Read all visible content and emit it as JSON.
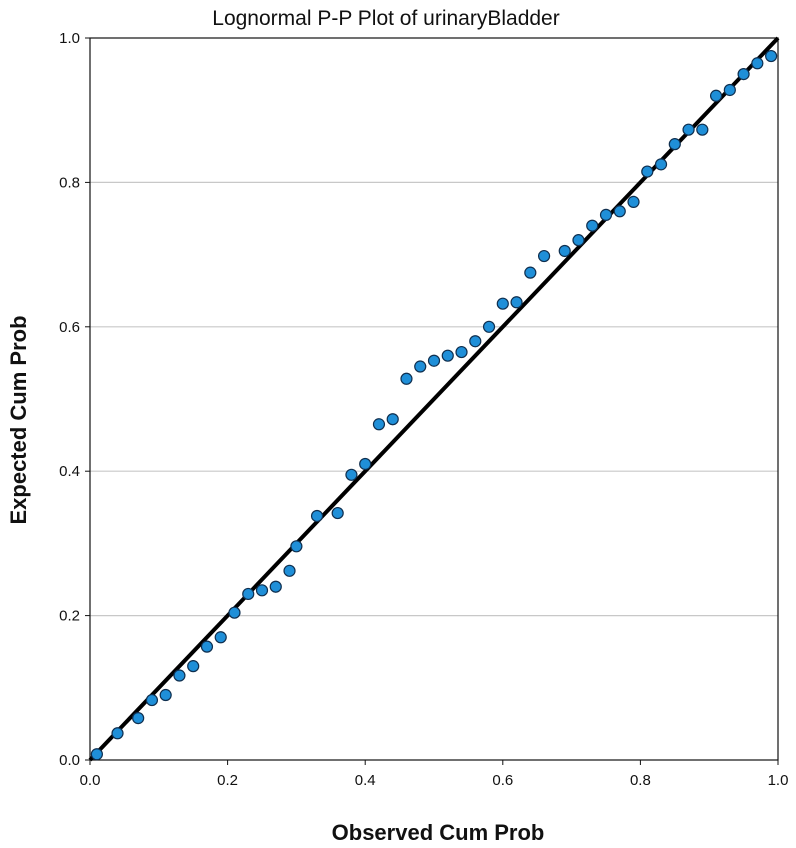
{
  "chart_data": {
    "type": "scatter",
    "title": "Lognormal P-P Plot of urinaryBladder",
    "xlabel": "Observed Cum Prob",
    "ylabel": "Expected Cum Prob",
    "xlim": [
      0.0,
      1.0
    ],
    "ylim": [
      0.0,
      1.0
    ],
    "x_ticks": [
      "0.0",
      "0.2",
      "0.4",
      "0.6",
      "0.8",
      "1.0"
    ],
    "y_ticks": [
      "0.0",
      "0.2",
      "0.4",
      "0.6",
      "0.8",
      "1.0"
    ],
    "grid": "horizontal",
    "reference_line": {
      "from": [
        0.0,
        0.0
      ],
      "to": [
        1.0,
        1.0
      ]
    },
    "point_color": "#1f8fd8",
    "line_color": "#000000",
    "points": [
      [
        0.01,
        0.008
      ],
      [
        0.04,
        0.037
      ],
      [
        0.07,
        0.058
      ],
      [
        0.09,
        0.083
      ],
      [
        0.11,
        0.09
      ],
      [
        0.13,
        0.117
      ],
      [
        0.15,
        0.13
      ],
      [
        0.17,
        0.157
      ],
      [
        0.19,
        0.17
      ],
      [
        0.21,
        0.204
      ],
      [
        0.23,
        0.23
      ],
      [
        0.25,
        0.235
      ],
      [
        0.27,
        0.24
      ],
      [
        0.29,
        0.262
      ],
      [
        0.3,
        0.296
      ],
      [
        0.33,
        0.338
      ],
      [
        0.36,
        0.342
      ],
      [
        0.38,
        0.395
      ],
      [
        0.4,
        0.41
      ],
      [
        0.42,
        0.465
      ],
      [
        0.44,
        0.472
      ],
      [
        0.46,
        0.528
      ],
      [
        0.48,
        0.545
      ],
      [
        0.5,
        0.553
      ],
      [
        0.52,
        0.56
      ],
      [
        0.54,
        0.565
      ],
      [
        0.56,
        0.58
      ],
      [
        0.58,
        0.6
      ],
      [
        0.6,
        0.632
      ],
      [
        0.62,
        0.634
      ],
      [
        0.64,
        0.675
      ],
      [
        0.66,
        0.698
      ],
      [
        0.69,
        0.705
      ],
      [
        0.71,
        0.72
      ],
      [
        0.73,
        0.74
      ],
      [
        0.75,
        0.755
      ],
      [
        0.77,
        0.76
      ],
      [
        0.79,
        0.773
      ],
      [
        0.81,
        0.815
      ],
      [
        0.83,
        0.825
      ],
      [
        0.85,
        0.853
      ],
      [
        0.87,
        0.873
      ],
      [
        0.89,
        0.873
      ],
      [
        0.91,
        0.92
      ],
      [
        0.93,
        0.928
      ],
      [
        0.95,
        0.95
      ],
      [
        0.97,
        0.965
      ],
      [
        0.99,
        0.975
      ]
    ]
  }
}
